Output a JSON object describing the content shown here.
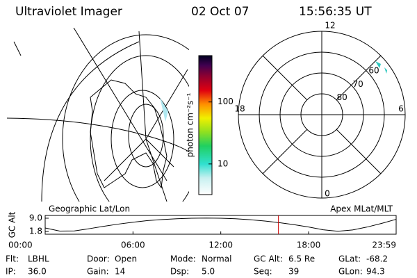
{
  "header": {
    "title": "Ultraviolet Imager",
    "date": "02 Oct 07",
    "time": "15:56:35 UT"
  },
  "colorbar": {
    "label": "photon cm⁻²s⁻¹",
    "scale": "log",
    "lim": [
      3.2,
      560
    ],
    "ticks": [
      10,
      100
    ]
  },
  "polar": {
    "mlt_labels": [
      "12",
      "18",
      "6",
      "0"
    ],
    "lat_lim": [
      90,
      50
    ],
    "lat_ticks": [
      60,
      70,
      80
    ]
  },
  "altitude": {
    "ylabel": "GC Alt",
    "left_title": "Geographic Lat/Lon",
    "right_title": "Apex MLat/MLT",
    "xlim": [
      0,
      23.983
    ],
    "xticks": [
      {
        "value": 0,
        "label": "00:00"
      },
      {
        "value": 6,
        "label": "06:00"
      },
      {
        "value": 12,
        "label": "12:00"
      },
      {
        "value": 18,
        "label": "18:00"
      },
      {
        "value": 23.983,
        "label": "23:59"
      }
    ],
    "ylim": [
      0.3,
      10.5
    ],
    "yticks": [
      {
        "value": 9,
        "label": "9.0"
      },
      1.8
    ],
    "x": [
      0,
      1,
      2,
      3,
      4,
      5,
      6,
      7,
      8,
      9,
      10,
      11,
      12,
      13,
      14,
      15,
      16,
      17,
      18,
      19,
      20,
      21,
      22,
      23,
      23.983
    ],
    "values": [
      3.7,
      2.0,
      2.1,
      3.3,
      4.6,
      5.8,
      6.8,
      7.7,
      8.3,
      8.7,
      9.0,
      9.1,
      9.0,
      8.7,
      8.2,
      7.5,
      6.6,
      5.5,
      4.2,
      2.7,
      1.9,
      2.6,
      4.2,
      6.2,
      8.4
    ],
    "current_time": 15.94,
    "marker_color": "#cc0000"
  },
  "info": {
    "rows": [
      [
        {
          "label": "Flt:",
          "value": "LBHL"
        },
        {
          "label": "Door:",
          "value": "Open"
        },
        {
          "label": "Mode:",
          "value": "Normal"
        },
        {
          "label": "GC Alt:",
          "value": "6.5 Re"
        },
        {
          "label": "GLat:",
          "value": "-68.2"
        }
      ],
      [
        {
          "label": "IP:",
          "value": "36.0"
        },
        {
          "label": "Gain:",
          "value": "14"
        },
        {
          "label": "Dsp:",
          "value": "5.0"
        },
        {
          "label": "Seq:",
          "value": "39"
        },
        {
          "label": "GLon:",
          "value": "94.3"
        }
      ]
    ]
  }
}
